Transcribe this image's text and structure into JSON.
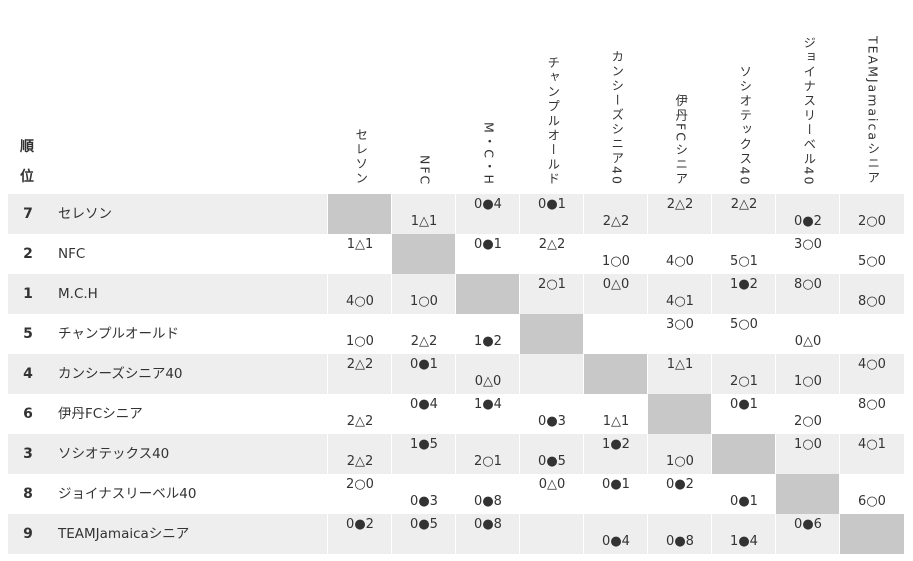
{
  "header": {
    "rank_label_1": "順",
    "rank_label_2": "位",
    "columns": [
      "セレソン",
      "NFC",
      "M・C・H",
      "チャンプルオールド",
      "カンシーズシニア40",
      "伊丹FCシニア",
      "ソシオテックス40",
      "ジョイナスリーベル40",
      "TEAMJamaicaシニア"
    ]
  },
  "rows": [
    {
      "rank": "7",
      "team": "セレソン",
      "cells": [
        {
          "top": "",
          "bottom": ""
        },
        {
          "top": "",
          "bottom": "1△1"
        },
        {
          "top": "0●4",
          "bottom": ""
        },
        {
          "top": "0●1",
          "bottom": ""
        },
        {
          "top": "",
          "bottom": "2△2"
        },
        {
          "top": "2△2",
          "bottom": ""
        },
        {
          "top": "2△2",
          "bottom": ""
        },
        {
          "top": "",
          "bottom": "0●2"
        },
        {
          "top": "",
          "bottom": "2○0"
        }
      ]
    },
    {
      "rank": "2",
      "team": "NFC",
      "cells": [
        {
          "top": "1△1",
          "bottom": ""
        },
        {
          "top": "",
          "bottom": ""
        },
        {
          "top": "0●1",
          "bottom": ""
        },
        {
          "top": "2△2",
          "bottom": ""
        },
        {
          "top": "",
          "bottom": "1○0"
        },
        {
          "top": "",
          "bottom": "4○0"
        },
        {
          "top": "",
          "bottom": "5○1"
        },
        {
          "top": "3○0",
          "bottom": ""
        },
        {
          "top": "",
          "bottom": "5○0"
        }
      ]
    },
    {
      "rank": "1",
      "team": "M.C.H",
      "cells": [
        {
          "top": "",
          "bottom": "4○0"
        },
        {
          "top": "",
          "bottom": "1○0"
        },
        {
          "top": "",
          "bottom": ""
        },
        {
          "top": "2○1",
          "bottom": ""
        },
        {
          "top": "0△0",
          "bottom": ""
        },
        {
          "top": "",
          "bottom": "4○1"
        },
        {
          "top": "1●2",
          "bottom": ""
        },
        {
          "top": "8○0",
          "bottom": ""
        },
        {
          "top": "",
          "bottom": "8○0"
        }
      ]
    },
    {
      "rank": "5",
      "team": "チャンプルオールド",
      "cells": [
        {
          "top": "",
          "bottom": "1○0"
        },
        {
          "top": "",
          "bottom": "2△2"
        },
        {
          "top": "",
          "bottom": "1●2"
        },
        {
          "top": "",
          "bottom": ""
        },
        {
          "top": "",
          "bottom": ""
        },
        {
          "top": "3○0",
          "bottom": ""
        },
        {
          "top": "5○0",
          "bottom": ""
        },
        {
          "top": "",
          "bottom": "0△0"
        },
        {
          "top": "",
          "bottom": ""
        }
      ]
    },
    {
      "rank": "4",
      "team": "カンシーズシニア40",
      "cells": [
        {
          "top": "2△2",
          "bottom": ""
        },
        {
          "top": "0●1",
          "bottom": ""
        },
        {
          "top": "",
          "bottom": "0△0"
        },
        {
          "top": "",
          "bottom": ""
        },
        {
          "top": "",
          "bottom": ""
        },
        {
          "top": "1△1",
          "bottom": ""
        },
        {
          "top": "",
          "bottom": "2○1"
        },
        {
          "top": "",
          "bottom": "1○0"
        },
        {
          "top": "4○0",
          "bottom": ""
        }
      ]
    },
    {
      "rank": "6",
      "team": "伊丹FCシニア",
      "cells": [
        {
          "top": "",
          "bottom": "2△2"
        },
        {
          "top": "0●4",
          "bottom": ""
        },
        {
          "top": "1●4",
          "bottom": ""
        },
        {
          "top": "",
          "bottom": "0●3"
        },
        {
          "top": "",
          "bottom": "1△1"
        },
        {
          "top": "",
          "bottom": ""
        },
        {
          "top": "0●1",
          "bottom": ""
        },
        {
          "top": "",
          "bottom": "2○0"
        },
        {
          "top": "8○0",
          "bottom": ""
        }
      ]
    },
    {
      "rank": "3",
      "team": "ソシオテックス40",
      "cells": [
        {
          "top": "",
          "bottom": "2△2"
        },
        {
          "top": "1●5",
          "bottom": ""
        },
        {
          "top": "",
          "bottom": "2○1"
        },
        {
          "top": "",
          "bottom": "0●5"
        },
        {
          "top": "1●2",
          "bottom": ""
        },
        {
          "top": "",
          "bottom": "1○0"
        },
        {
          "top": "",
          "bottom": ""
        },
        {
          "top": "1○0",
          "bottom": ""
        },
        {
          "top": "4○1",
          "bottom": ""
        }
      ]
    },
    {
      "rank": "8",
      "team": "ジョイナスリーベル40",
      "cells": [
        {
          "top": "2○0",
          "bottom": ""
        },
        {
          "top": "",
          "bottom": "0●3"
        },
        {
          "top": "",
          "bottom": "0●8"
        },
        {
          "top": "0△0",
          "bottom": ""
        },
        {
          "top": "0●1",
          "bottom": ""
        },
        {
          "top": "0●2",
          "bottom": ""
        },
        {
          "top": "",
          "bottom": "0●1"
        },
        {
          "top": "",
          "bottom": ""
        },
        {
          "top": "",
          "bottom": "6○0"
        }
      ]
    },
    {
      "rank": "9",
      "team": "TEAMJamaicaシニア",
      "cells": [
        {
          "top": "0●2",
          "bottom": ""
        },
        {
          "top": "0●5",
          "bottom": ""
        },
        {
          "top": "0●8",
          "bottom": ""
        },
        {
          "top": "",
          "bottom": ""
        },
        {
          "top": "",
          "bottom": "0●4"
        },
        {
          "top": "",
          "bottom": "0●8"
        },
        {
          "top": "",
          "bottom": "1●4"
        },
        {
          "top": "0●6",
          "bottom": ""
        },
        {
          "top": "",
          "bottom": ""
        }
      ]
    }
  ],
  "colors": {
    "row_shade": "#eeeeee",
    "self_cell": "#c8c8c8",
    "text": "#333333"
  }
}
